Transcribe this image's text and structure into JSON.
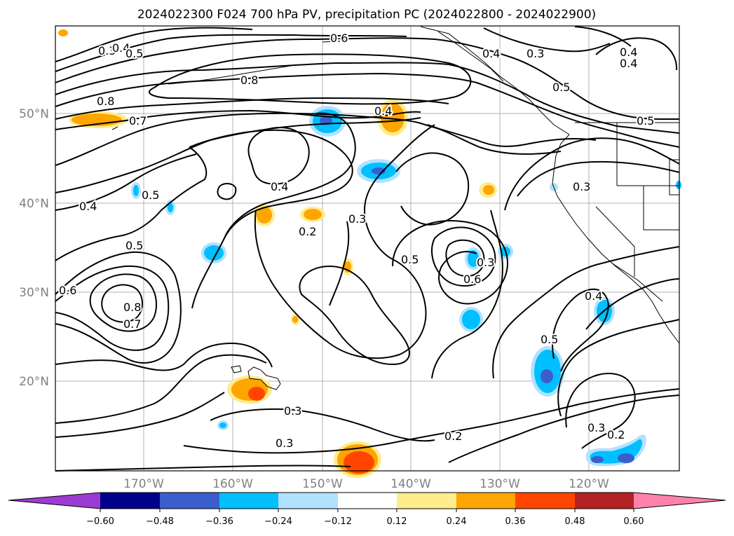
{
  "title": "2024022300 F024 700 hPa PV, precipitation PC (2024022800 - 2024022900)",
  "axes": {
    "lat_ticks": [
      "50°N",
      "40°N",
      "30°N",
      "20°N"
    ],
    "lon_ticks": [
      "170°W",
      "160°W",
      "150°W",
      "140°W",
      "130°W",
      "120°W"
    ]
  },
  "colorbar": {
    "ticks": [
      "−0.60",
      "−0.48",
      "−0.36",
      "−0.24",
      "−0.12",
      "0.12",
      "0.24",
      "0.36",
      "0.48",
      "0.60"
    ],
    "colors": [
      "#9c3bd1",
      "#00008b",
      "#3a5fcd",
      "#00bfff",
      "#b0e2ff",
      "#ffffff",
      "#ffec8b",
      "#ffa500",
      "#ff4500",
      "#b22222",
      "#ff82ab"
    ]
  },
  "contour_labels": {
    "c1": "0.3",
    "c2": "0.4",
    "c3": "0.5",
    "c4": "0.6",
    "c5": "0.4",
    "c6": "0.3",
    "c7": "0.4",
    "c8": "0.8",
    "c9": "0.5",
    "c10": "0.8",
    "c11": "0.7",
    "c12": "0.5",
    "c13": "0.4",
    "c14": "0.5",
    "c15": "0.4",
    "c16": "0.3",
    "c17": "0.2",
    "c18": "0.4",
    "c19": "0.3",
    "c20": "0.5",
    "c21": "0.5",
    "c22": "0.6",
    "c23": "0.6",
    "c24": "0.8",
    "c25": "0.7",
    "c26": "0.4",
    "c27": "0.5",
    "c28": "0.3",
    "c29": "0.3",
    "c30": "0.3",
    "c31": "0.2",
    "c32": "0.3",
    "c33": "0.2",
    "c34": "0.4"
  }
}
